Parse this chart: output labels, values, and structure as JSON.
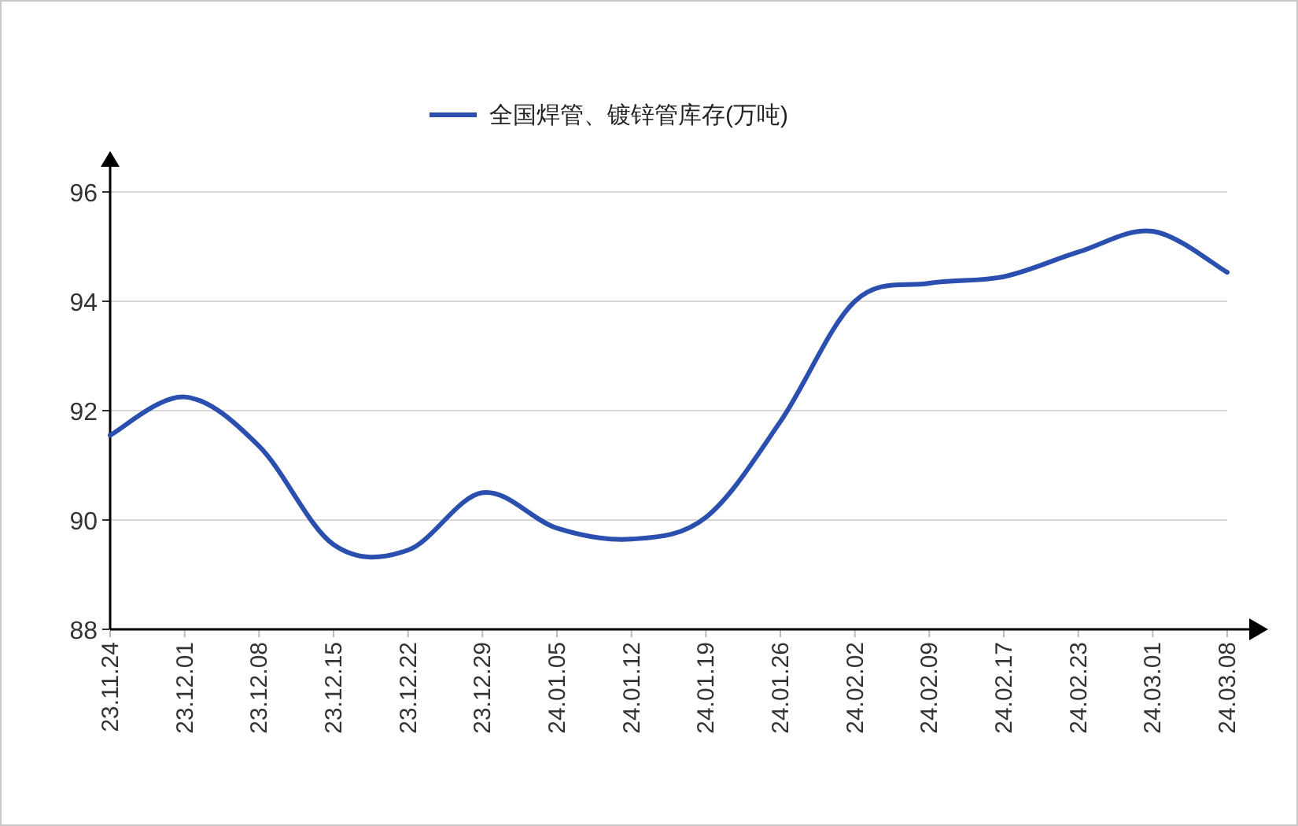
{
  "chart_data": {
    "type": "line",
    "categories": [
      "23.11.24",
      "23.12.01",
      "23.12.08",
      "23.12.15",
      "23.12.22",
      "23.12.29",
      "24.01.05",
      "24.01.12",
      "24.01.19",
      "24.01.26",
      "24.02.02",
      "24.02.09",
      "24.02.17",
      "24.02.23",
      "24.03.01",
      "24.03.08"
    ],
    "series": [
      {
        "name": "全国焊管、镀锌管库存(万吨)",
        "color": "#2a4fae",
        "values": [
          91.55,
          92.25,
          91.35,
          89.55,
          89.45,
          90.5,
          89.85,
          89.65,
          90.05,
          91.8,
          94.0,
          94.33,
          94.45,
          94.9,
          95.28,
          94.53
        ]
      }
    ],
    "ylim": [
      88,
      96
    ],
    "yticks": [
      88,
      90,
      92,
      94,
      96
    ],
    "grid": "y",
    "legend": "top",
    "marker": "none",
    "line_style": "solid"
  }
}
